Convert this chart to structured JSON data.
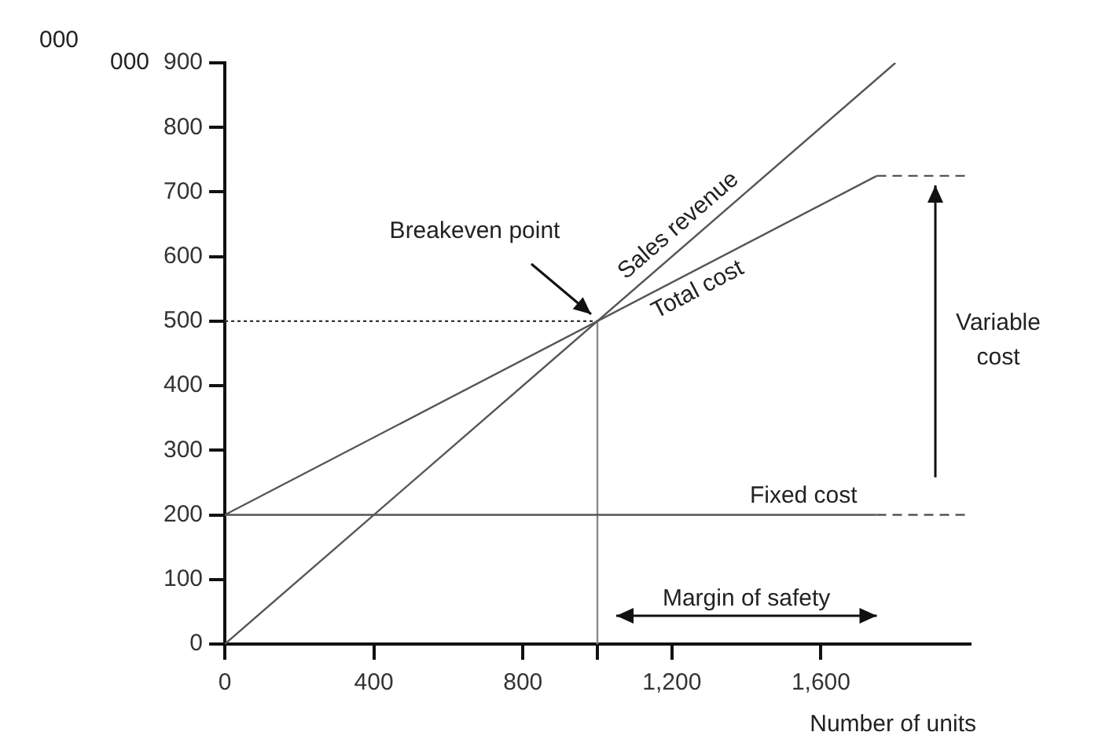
{
  "chart_data": {
    "type": "line",
    "xlabel": "Number of units",
    "ylabel": "000",
    "xlim": [
      0,
      2000
    ],
    "ylim": [
      0,
      900
    ],
    "xticks": [
      0,
      400,
      800,
      {
        "value": 1000,
        "label": null
      },
      {
        "value": 1200,
        "label": "1,200"
      },
      {
        "value": 1600,
        "label": "1,600"
      }
    ],
    "yticks": [
      0,
      100,
      200,
      300,
      400,
      500,
      600,
      700,
      800,
      900
    ],
    "grid": false,
    "legend": false,
    "marker": "none",
    "series": [
      {
        "name": "Sales revenue",
        "color": "#555555",
        "x": [
          0,
          1800
        ],
        "values": [
          0,
          900
        ]
      },
      {
        "name": "Total cost",
        "color": "#555555",
        "x": [
          0,
          1750
        ],
        "values": [
          200,
          725
        ]
      },
      {
        "name": "Fixed cost",
        "color": "#555555",
        "x": [
          0,
          1750
        ],
        "values": [
          200,
          200
        ]
      },
      {
        "color": "#555555",
        "x": [
          1750,
          2000
        ],
        "values": [
          725,
          725
        ],
        "line_style": "dashed"
      },
      {
        "color": "#555555",
        "x": [
          1750,
          2000
        ],
        "values": [
          200,
          200
        ],
        "line_style": "dashed"
      },
      {
        "color": "#333333",
        "x": [
          0,
          1000
        ],
        "values": [
          500,
          500
        ],
        "line_style": "dotted"
      },
      {
        "color": "#888888",
        "x": [
          1000,
          1000
        ],
        "values": [
          0,
          500
        ]
      }
    ],
    "annotations": [
      "000",
      {
        "text": "Breakeven point",
        "x": 1000,
        "y": 500
      },
      "Variable cost",
      "Margin of safety"
    ]
  }
}
